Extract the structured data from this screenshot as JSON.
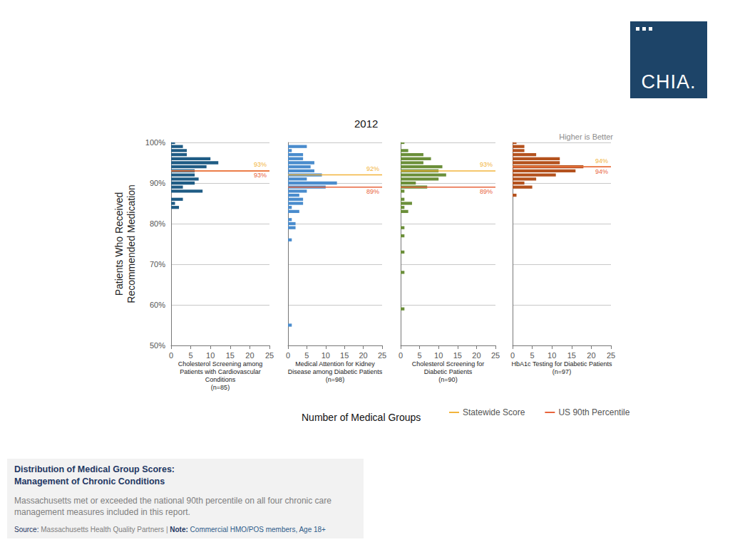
{
  "chart_data": {
    "type": "bar",
    "orientation": "horizontal",
    "title": "2012",
    "annotation": "Higher is Better",
    "y_label": "Patients Who Received\nRecommended Medication",
    "x_label": "Number of Medical Groups",
    "ylim": [
      50,
      100
    ],
    "yticks": [
      {
        "value": 50,
        "label": "50%"
      },
      {
        "value": 60,
        "label": "60%"
      },
      {
        "value": 70,
        "label": "70%"
      },
      {
        "value": 80,
        "label": "80%"
      },
      {
        "value": 90,
        "label": "90%"
      },
      {
        "value": 100,
        "label": "100%"
      }
    ],
    "xlim": [
      0,
      25
    ],
    "xticks": [
      0,
      5,
      10,
      15,
      20,
      25
    ],
    "grid": true,
    "legend": "bottom",
    "panels": [
      {
        "title": "Cholesterol Screening among\nPatients with Cardiovascular\nConditions\n(n=85)",
        "color": "#1f5c85",
        "y": [
          100,
          99,
          98,
          97,
          96,
          95,
          94,
          93,
          92,
          91,
          90,
          89,
          88,
          86,
          85,
          84
        ],
        "values": [
          1,
          3,
          4,
          4,
          10,
          12,
          9,
          6,
          6,
          7,
          6,
          3,
          8,
          3,
          1,
          2
        ],
        "lines": [
          {
            "name": "Statewide Score",
            "color": "#f2b43c",
            "value": 93,
            "label": "93%"
          },
          {
            "name": "US 90th Percentile",
            "color": "#e8643c",
            "value": 93,
            "label": "93%"
          }
        ]
      },
      {
        "title": "Medical Attention for Kidney\nDisease among Diabetic Patients\n(n=98)",
        "color": "#4a8ccd",
        "y": [
          99,
          98,
          97,
          96,
          95,
          94,
          93,
          92,
          91,
          90,
          89,
          88,
          87,
          86,
          85,
          84,
          83,
          81,
          80,
          79,
          76,
          55
        ],
        "values": [
          5,
          1,
          4,
          4,
          7,
          6,
          7,
          9,
          5,
          13,
          10,
          5,
          3,
          4,
          4,
          1,
          3,
          1,
          2,
          2,
          1,
          1
        ],
        "lines": [
          {
            "name": "Statewide Score",
            "color": "#f2b43c",
            "value": 92,
            "label": "92%"
          },
          {
            "name": "US 90th Percentile",
            "color": "#e8643c",
            "value": 89,
            "label": "89%"
          }
        ]
      },
      {
        "title": "Cholesterol Screening for\nDiabetic Patients\n(n=90)",
        "color": "#6b8f3a",
        "y": [
          100,
          98,
          97,
          96,
          95,
          94,
          93,
          92,
          91,
          90,
          89,
          88,
          86,
          85,
          84,
          83,
          79,
          77,
          73,
          68,
          59
        ],
        "values": [
          1,
          2,
          6,
          8,
          6,
          11,
          10,
          12,
          10,
          4,
          7,
          1,
          1,
          3,
          1,
          2,
          1,
          1,
          1,
          1,
          1
        ],
        "lines": [
          {
            "name": "Statewide Score",
            "color": "#f2b43c",
            "value": 93,
            "label": "93%"
          },
          {
            "name": "US 90th Percentile",
            "color": "#e8643c",
            "value": 89,
            "label": "89%"
          }
        ]
      },
      {
        "title": "HbA1c Testing for Diabetic Patients\n(n=97)",
        "color": "#b4521e",
        "y": [
          100,
          99,
          98,
          97,
          96,
          95,
          94,
          93,
          92,
          91,
          90,
          89,
          87
        ],
        "values": [
          1,
          3,
          3,
          6,
          12,
          12,
          18,
          16,
          11,
          6,
          3,
          5,
          1
        ],
        "lines": [
          {
            "name": "Statewide Score",
            "color": "#f2b43c",
            "value": 94,
            "label": "94%"
          },
          {
            "name": "US 90th Percentile",
            "color": "#e8643c",
            "value": 94,
            "label": "94%"
          }
        ]
      }
    ]
  },
  "logo": "CHIA.",
  "caption": {
    "title": "Distribution of Medical Group Scores:\nManagement of Chronic Conditions",
    "text": "Massachusetts met or exceeded the national 90th percentile on all four chronic care management measures included in this report.",
    "source_label": "Source:",
    "source": "Massachusetts Health Quality Partners |",
    "note_label": "Note:",
    "note": "Commercial HMO/POS members, Age 18+"
  }
}
